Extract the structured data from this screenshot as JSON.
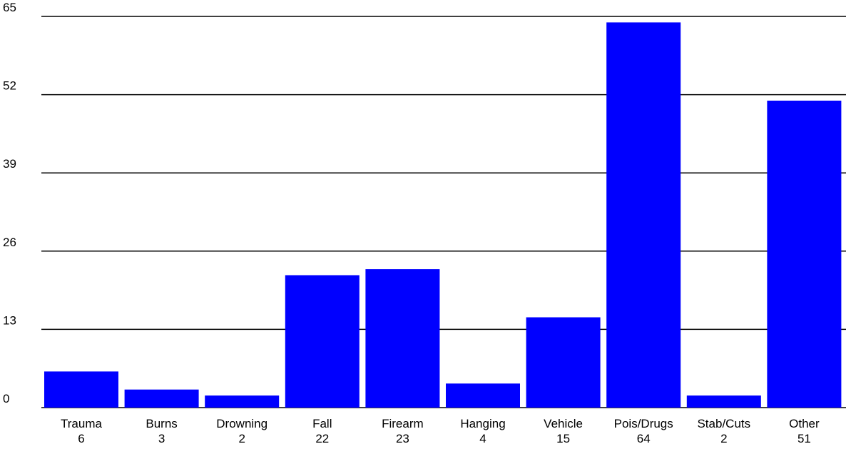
{
  "chart_data": {
    "type": "bar",
    "categories": [
      "Trauma",
      "Burns",
      "Drowning",
      "Fall",
      "Firearm",
      "Hanging",
      "Vehicle",
      "Pois/Drugs",
      "Stab/Cuts",
      "Other"
    ],
    "values": [
      6,
      3,
      2,
      22,
      23,
      4,
      15,
      64,
      2,
      51
    ],
    "value_labels": [
      "6",
      "3",
      "2",
      "22",
      "23",
      "4",
      "15",
      "64",
      "2",
      "51"
    ],
    "yticks": [
      "0",
      "13",
      "26",
      "39",
      "52",
      "65"
    ],
    "ylim": [
      0,
      65
    ],
    "grid": true,
    "legend": "none",
    "title": "",
    "xlabel": "",
    "ylabel": "",
    "colors": {
      "bar": "#0000ff",
      "grid": "#000000",
      "background": "#ffffff"
    }
  }
}
